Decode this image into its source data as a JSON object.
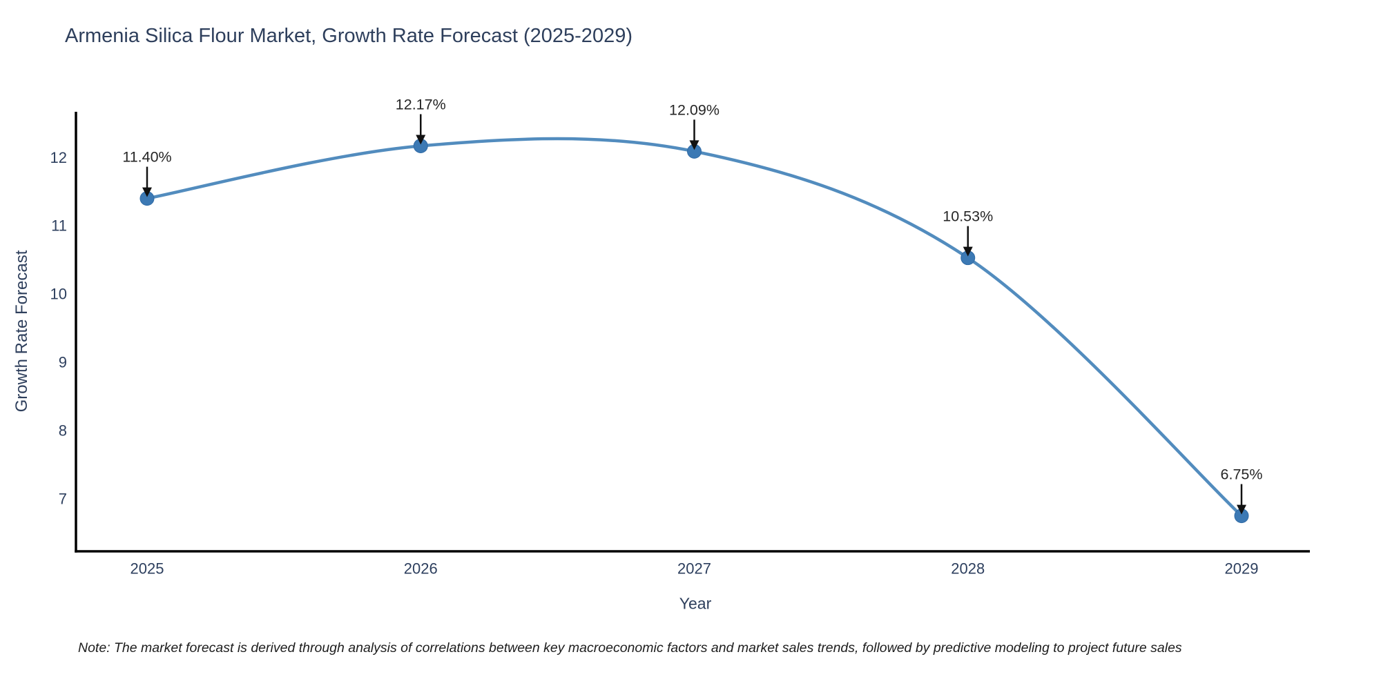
{
  "title": "Armenia Silica Flour Market, Growth Rate Forecast (2025-2029)",
  "note": "Note: The market forecast is derived through analysis of correlations between key macroeconomic factors and market sales trends, followed by predictive modeling to project future sales",
  "chart_data": {
    "type": "line",
    "title": "Armenia Silica Flour Market, Growth Rate Forecast (2025-2029)",
    "xlabel": "Year",
    "ylabel": "Growth Rate Forecast",
    "categories": [
      "2025",
      "2026",
      "2027",
      "2028",
      "2029"
    ],
    "series": [
      {
        "name": "Growth Rate Forecast",
        "values": [
          11.4,
          12.17,
          12.09,
          10.53,
          6.75
        ]
      }
    ],
    "point_labels": [
      "11.40%",
      "12.17%",
      "12.09%",
      "10.53%",
      "6.75%"
    ],
    "y_ticks": [
      7,
      8,
      9,
      10,
      11,
      12
    ],
    "ylim": [
      6.23,
      12.67
    ],
    "grid": false,
    "legend": "none",
    "line_shape": "spline",
    "annotation_style": "label-with-down-arrow",
    "colors": {
      "line": "#528cbe",
      "marker": "#3c79b4",
      "marker_edge": "#2f6aa5",
      "arrow": "#111111",
      "axis_line": "#000000",
      "axis_text": "#2d3f5e",
      "annotation_text": "#262626",
      "background": "#ffffff"
    }
  }
}
